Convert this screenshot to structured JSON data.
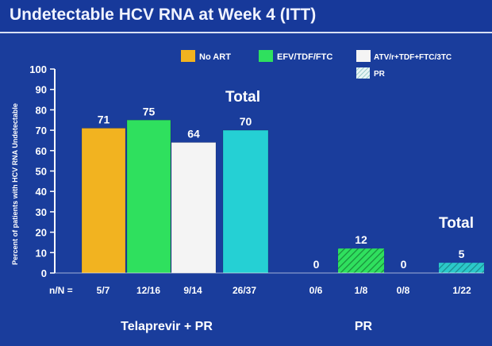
{
  "slide": {
    "title": "Undetectable HCV RNA at Week 4 (ITT)"
  },
  "chart_data": {
    "type": "bar",
    "title": "Undetectable HCV RNA at Week 4 (ITT)",
    "ylabel": "Percent of patients with HCV RNA Undetectable",
    "ylim": [
      0,
      100
    ],
    "yticks": [
      0,
      10,
      20,
      30,
      40,
      50,
      60,
      70,
      80,
      90,
      100
    ],
    "nn_prefix": "n/N =",
    "legend": {
      "placement": "top-right",
      "entries": [
        {
          "label": "No ART",
          "color": "#f2b320"
        },
        {
          "label": "EFV/TDF/FTC",
          "color": "#2fe05e"
        },
        {
          "label": "ATV/r+TDF+FTC/3TC",
          "color": "#f4f4f4"
        },
        {
          "label": "PR",
          "color": "#2bc9c9",
          "hatched": true
        }
      ]
    },
    "groups": [
      {
        "label": "Telaprevir + PR",
        "total_label": "Total",
        "bars": [
          {
            "series": "No ART",
            "value": 71,
            "value_label": "71",
            "nn": "5/7",
            "color": "#f2b320"
          },
          {
            "series": "EFV/TDF/FTC",
            "value": 75,
            "value_label": "75",
            "nn": "12/16",
            "color": "#2fe05e"
          },
          {
            "series": "ATV/r+TDF+FTC/3TC",
            "value": 64,
            "value_label": "64",
            "nn": "9/14",
            "color": "#f4f4f4"
          },
          {
            "series": "Total",
            "value": 70,
            "value_label": "70",
            "nn": "26/37",
            "color": "#25d0d4"
          }
        ]
      },
      {
        "label": "PR",
        "total_label": "Total",
        "bars": [
          {
            "series": "No ART",
            "value": 0,
            "value_label": "0",
            "nn": "0/6",
            "color": "#f2b320",
            "hatched": true
          },
          {
            "series": "EFV/TDF/FTC",
            "value": 12,
            "value_label": "12",
            "nn": "1/8",
            "color": "#2fe05e",
            "hatched": true
          },
          {
            "series": "ATV/r+TDF+FTC/3TC",
            "value": 0,
            "value_label": "0",
            "nn": "0/8",
            "color": "#f4f4f4",
            "hatched": true
          },
          {
            "series": "Total",
            "value": 5,
            "value_label": "5",
            "nn": "1/22",
            "color": "#25d0d4",
            "hatched": true
          }
        ]
      }
    ]
  }
}
